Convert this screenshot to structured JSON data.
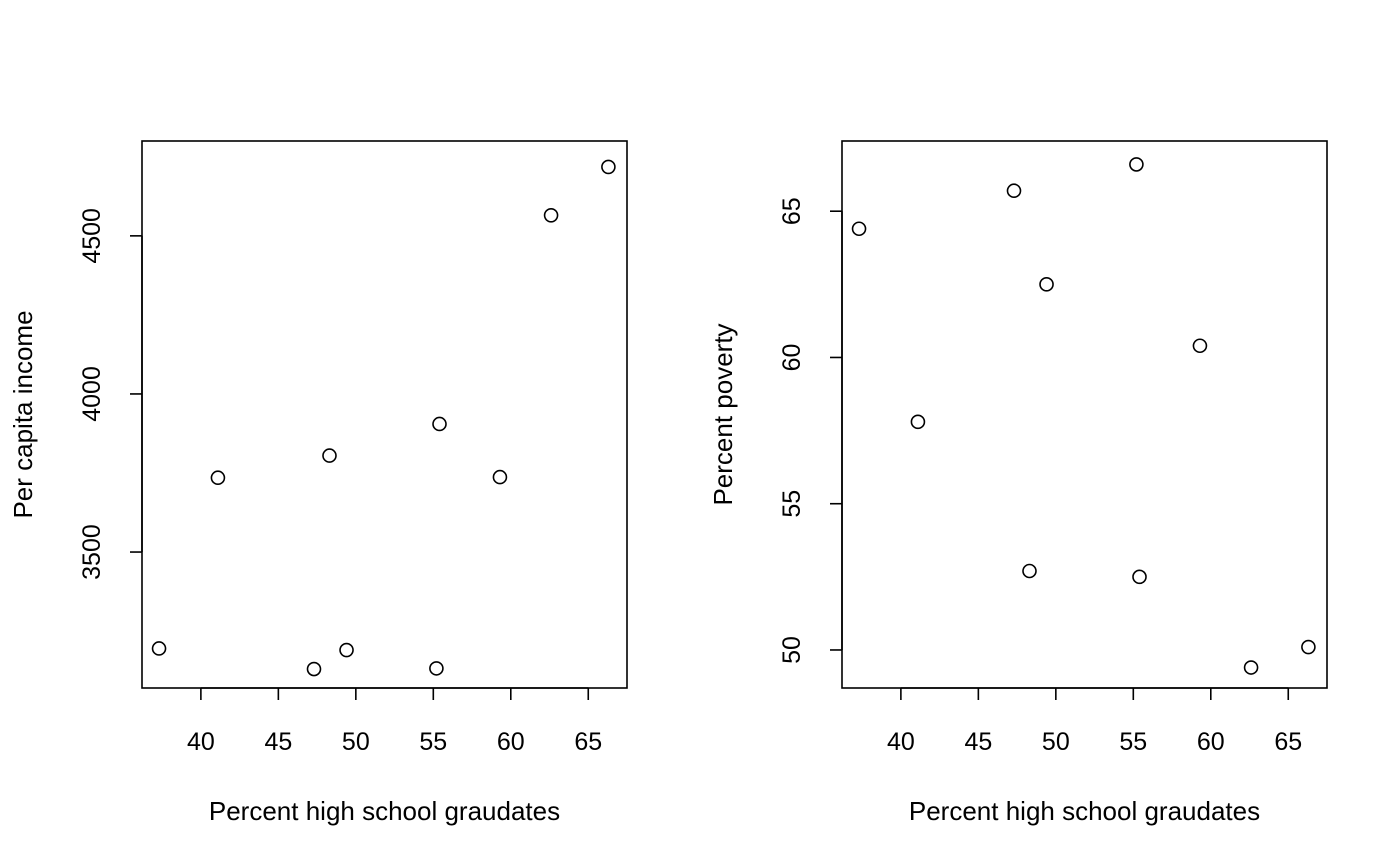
{
  "chart_data": [
    {
      "type": "scatter",
      "xlabel": "Percent high school graudates",
      "ylabel": "Per capita income",
      "xlim": [
        36.2,
        67.5
      ],
      "ylim": [
        3070,
        4800
      ],
      "xticks": [
        40,
        45,
        50,
        55,
        60,
        65
      ],
      "yticks": [
        3500,
        4000,
        4500
      ],
      "grid": false,
      "x": [
        37.3,
        41.1,
        47.3,
        48.3,
        49.4,
        55.2,
        55.4,
        59.3,
        62.6,
        66.3
      ],
      "y": [
        3195,
        3735,
        3130,
        3805,
        3190,
        3132,
        3905,
        3737,
        4565,
        4718
      ]
    },
    {
      "type": "scatter",
      "xlabel": "Percent high school graudates",
      "ylabel": "Percent poverty",
      "xlim": [
        36.2,
        67.5
      ],
      "ylim": [
        48.7,
        67.4
      ],
      "xticks": [
        40,
        45,
        50,
        55,
        60,
        65
      ],
      "yticks": [
        50,
        55,
        60,
        65
      ],
      "grid": false,
      "x": [
        37.3,
        41.1,
        47.3,
        48.3,
        49.4,
        55.2,
        55.4,
        59.3,
        62.6,
        66.3
      ],
      "y": [
        64.4,
        57.8,
        65.7,
        52.7,
        62.5,
        66.6,
        52.5,
        60.4,
        49.4,
        50.1
      ]
    }
  ]
}
